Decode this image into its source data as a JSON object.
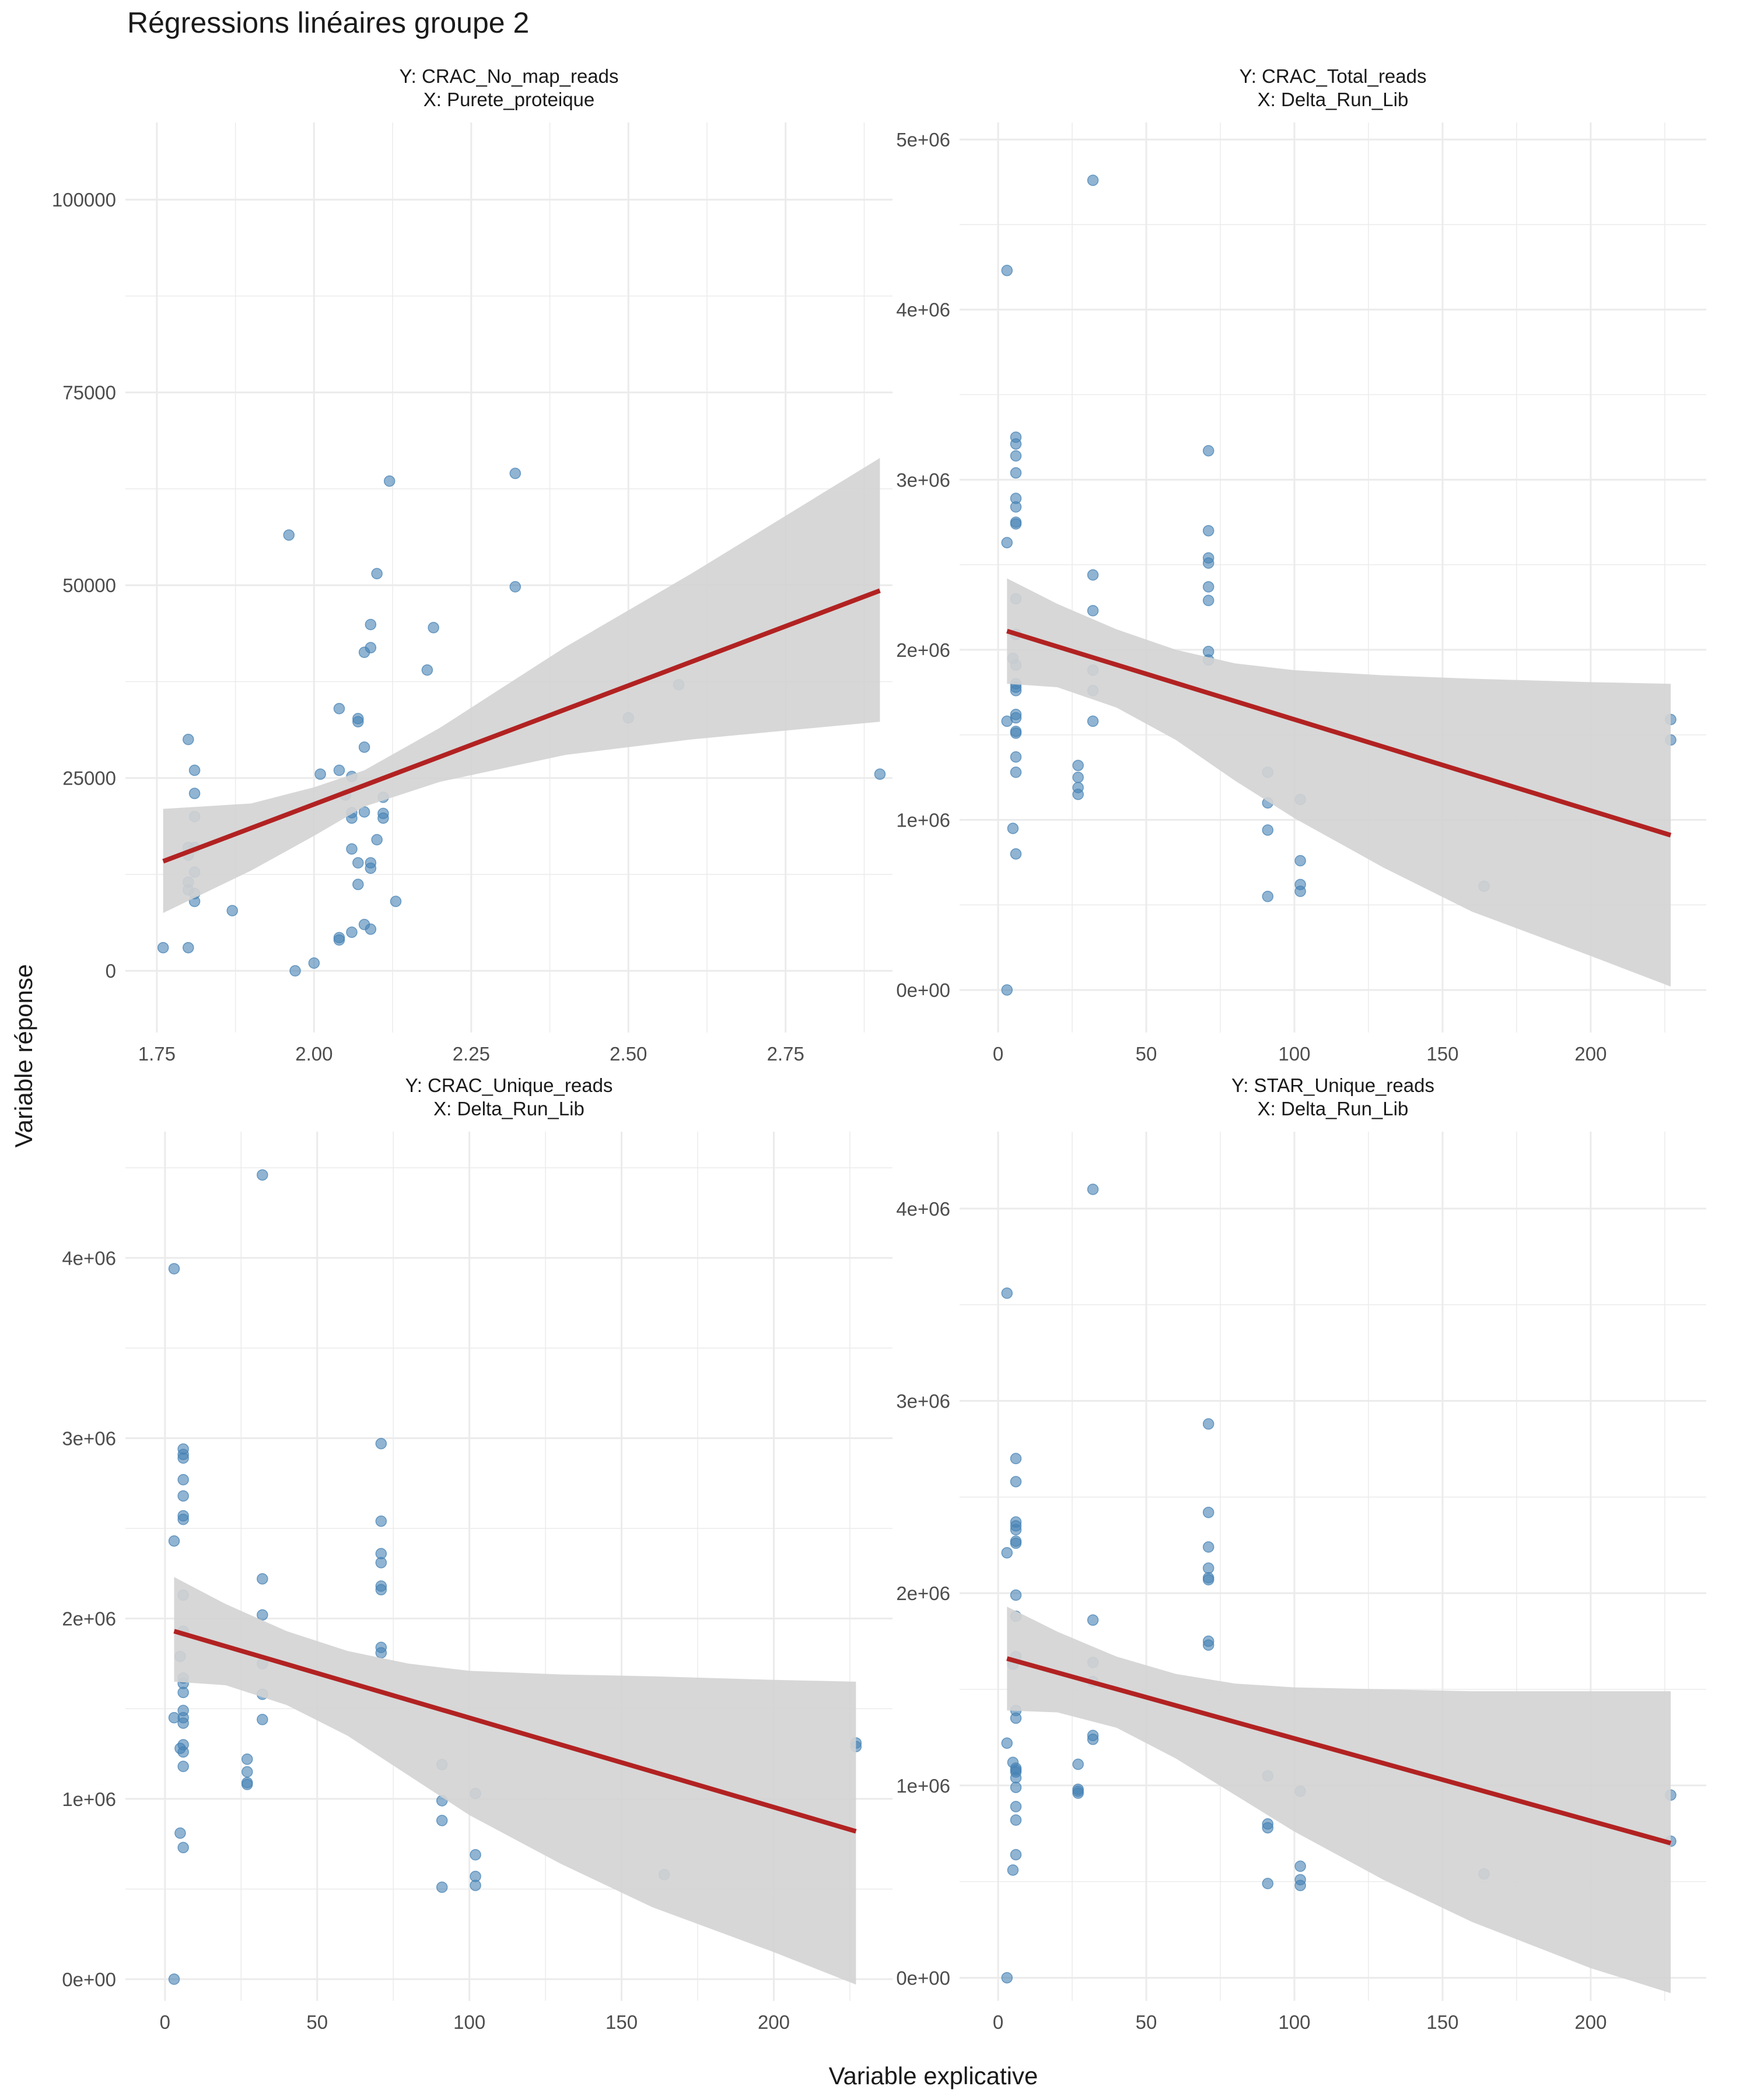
{
  "title": "Régressions linéaires groupe 2",
  "xlabel": "Variable explicative",
  "ylabel": "Variable réponse",
  "colors": {
    "point": "#4682b4",
    "line": "#b22222",
    "ribbon": "#d3d3d3",
    "grid": "#ebebeb"
  },
  "chart_data": [
    {
      "type": "scatter",
      "facet_title_y": "Y: CRAC_No_map_reads",
      "facet_title_x": "X: Purete_proteique",
      "xlim": [
        1.7,
        2.92
      ],
      "ylim": [
        -8000,
        110000
      ],
      "x_ticks": [
        1.75,
        2.0,
        2.25,
        2.5,
        2.75
      ],
      "x_tick_labels": [
        "1.75",
        "2.00",
        "2.25",
        "2.50",
        "2.75"
      ],
      "y_ticks": [
        0,
        25000,
        50000,
        75000,
        100000
      ],
      "y_tick_labels": [
        "0",
        "25000",
        "50000",
        "75000",
        "100000"
      ],
      "points": [
        [
          1.76,
          3000
        ],
        [
          1.8,
          3000
        ],
        [
          1.8,
          30000
        ],
        [
          1.8,
          16000
        ],
        [
          1.8,
          15000
        ],
        [
          1.8,
          11500
        ],
        [
          1.8,
          10500
        ],
        [
          1.81,
          26000
        ],
        [
          1.81,
          23000
        ],
        [
          1.81,
          20000
        ],
        [
          1.81,
          16000
        ],
        [
          1.81,
          12800
        ],
        [
          1.81,
          10000
        ],
        [
          1.81,
          9000
        ],
        [
          1.87,
          7800
        ],
        [
          1.96,
          56500
        ],
        [
          1.97,
          0
        ],
        [
          2.0,
          1000
        ],
        [
          2.01,
          25500
        ],
        [
          2.04,
          34000
        ],
        [
          2.04,
          26000
        ],
        [
          2.04,
          4000
        ],
        [
          2.04,
          4300
        ],
        [
          2.05,
          22800
        ],
        [
          2.06,
          25200
        ],
        [
          2.06,
          20500
        ],
        [
          2.06,
          19800
        ],
        [
          2.06,
          15800
        ],
        [
          2.06,
          5000
        ],
        [
          2.07,
          32700
        ],
        [
          2.07,
          32300
        ],
        [
          2.07,
          14000
        ],
        [
          2.07,
          11200
        ],
        [
          2.08,
          41300
        ],
        [
          2.08,
          29000
        ],
        [
          2.08,
          20600
        ],
        [
          2.08,
          6000
        ],
        [
          2.09,
          44900
        ],
        [
          2.09,
          41900
        ],
        [
          2.09,
          14000
        ],
        [
          2.09,
          13300
        ],
        [
          2.09,
          5400
        ],
        [
          2.1,
          51500
        ],
        [
          2.1,
          17000
        ],
        [
          2.11,
          22500
        ],
        [
          2.11,
          20400
        ],
        [
          2.11,
          19800
        ],
        [
          2.12,
          63500
        ],
        [
          2.13,
          9000
        ],
        [
          2.18,
          39000
        ],
        [
          2.19,
          44500
        ],
        [
          2.32,
          64500
        ],
        [
          2.32,
          49800
        ],
        [
          2.5,
          32800
        ],
        [
          2.58,
          37100
        ],
        [
          2.9,
          25500
        ]
      ],
      "fit": {
        "x": [
          1.76,
          2.9
        ],
        "y": [
          14200,
          49300
        ]
      },
      "band": [
        [
          1.76,
          21000,
          7500
        ],
        [
          1.9,
          21700,
          13000
        ],
        [
          2.0,
          23800,
          17500
        ],
        [
          2.08,
          26000,
          21300
        ],
        [
          2.2,
          31500,
          24500
        ],
        [
          2.4,
          42000,
          28000
        ],
        [
          2.6,
          51500,
          30000
        ],
        [
          2.9,
          66500,
          32300
        ]
      ]
    },
    {
      "type": "scatter",
      "facet_title_y": "Y: CRAC_Total_reads",
      "facet_title_x": "X: Delta_Run_Lib",
      "xlim": [
        -13,
        239
      ],
      "ylim": [
        -250000,
        5100000
      ],
      "x_ticks": [
        0,
        50,
        100,
        150,
        200
      ],
      "x_tick_labels": [
        "0",
        "50",
        "100",
        "150",
        "200"
      ],
      "y_ticks": [
        0,
        1000000,
        2000000,
        3000000,
        4000000,
        5000000
      ],
      "y_tick_labels": [
        "0e+00",
        "1e+06",
        "2e+06",
        "3e+06",
        "4e+06",
        "5e+06"
      ],
      "points": [
        [
          3,
          4230000
        ],
        [
          3,
          2630000
        ],
        [
          3,
          1580000
        ],
        [
          3,
          0
        ],
        [
          5,
          1950000
        ],
        [
          5,
          950000
        ],
        [
          6,
          3250000
        ],
        [
          6,
          3210000
        ],
        [
          6,
          3140000
        ],
        [
          6,
          3040000
        ],
        [
          6,
          2890000
        ],
        [
          6,
          2840000
        ],
        [
          6,
          2750000
        ],
        [
          6,
          2740000
        ],
        [
          6,
          2300000
        ],
        [
          6,
          2090000
        ],
        [
          6,
          1910000
        ],
        [
          6,
          1800000
        ],
        [
          6,
          1780000
        ],
        [
          6,
          1760000
        ],
        [
          6,
          1620000
        ],
        [
          6,
          1600000
        ],
        [
          6,
          1520000
        ],
        [
          6,
          1510000
        ],
        [
          6,
          1370000
        ],
        [
          6,
          1280000
        ],
        [
          6,
          800000
        ],
        [
          27,
          1320000
        ],
        [
          27,
          1250000
        ],
        [
          27,
          1190000
        ],
        [
          27,
          1150000
        ],
        [
          32,
          4760000
        ],
        [
          32,
          2440000
        ],
        [
          32,
          2230000
        ],
        [
          32,
          1880000
        ],
        [
          32,
          1760000
        ],
        [
          32,
          1580000
        ],
        [
          71,
          3170000
        ],
        [
          71,
          2700000
        ],
        [
          71,
          2540000
        ],
        [
          71,
          2510000
        ],
        [
          71,
          2370000
        ],
        [
          71,
          2290000
        ],
        [
          71,
          1990000
        ],
        [
          71,
          1940000
        ],
        [
          91,
          1280000
        ],
        [
          91,
          1100000
        ],
        [
          91,
          940000
        ],
        [
          91,
          550000
        ],
        [
          102,
          1120000
        ],
        [
          102,
          760000
        ],
        [
          102,
          620000
        ],
        [
          102,
          580000
        ],
        [
          164,
          610000
        ],
        [
          227,
          1590000
        ],
        [
          227,
          1470000
        ]
      ],
      "fit": {
        "x": [
          3,
          227
        ],
        "y": [
          2110000,
          910000
        ]
      },
      "band": [
        [
          3,
          2420000,
          1800000
        ],
        [
          20,
          2270000,
          1780000
        ],
        [
          40,
          2120000,
          1660000
        ],
        [
          60,
          2000000,
          1470000
        ],
        [
          80,
          1920000,
          1230000
        ],
        [
          100,
          1880000,
          1010000
        ],
        [
          130,
          1850000,
          720000
        ],
        [
          160,
          1830000,
          460000
        ],
        [
          200,
          1810000,
          200000
        ],
        [
          227,
          1800000,
          20000
        ]
      ]
    },
    {
      "type": "scatter",
      "facet_title_y": "Y: CRAC_Unique_reads",
      "facet_title_x": "X: Delta_Run_Lib",
      "xlim": [
        -13,
        239
      ],
      "ylim": [
        -120000,
        4700000
      ],
      "x_ticks": [
        0,
        50,
        100,
        150,
        200
      ],
      "x_tick_labels": [
        "0",
        "50",
        "100",
        "150",
        "200"
      ],
      "y_ticks": [
        0,
        1000000,
        2000000,
        3000000,
        4000000
      ],
      "y_tick_labels": [
        "0e+00",
        "1e+06",
        "2e+06",
        "3e+06",
        "4e+06"
      ],
      "points": [
        [
          3,
          3940000
        ],
        [
          3,
          2430000
        ],
        [
          3,
          1450000
        ],
        [
          3,
          0
        ],
        [
          5,
          1790000
        ],
        [
          5,
          810000
        ],
        [
          5,
          1280000
        ],
        [
          6,
          2940000
        ],
        [
          6,
          2910000
        ],
        [
          6,
          2890000
        ],
        [
          6,
          2770000
        ],
        [
          6,
          2680000
        ],
        [
          6,
          2570000
        ],
        [
          6,
          2550000
        ],
        [
          6,
          2130000
        ],
        [
          6,
          1930000
        ],
        [
          6,
          1670000
        ],
        [
          6,
          1640000
        ],
        [
          6,
          1590000
        ],
        [
          6,
          1490000
        ],
        [
          6,
          1450000
        ],
        [
          6,
          1420000
        ],
        [
          6,
          1300000
        ],
        [
          6,
          1260000
        ],
        [
          6,
          1180000
        ],
        [
          6,
          730000
        ],
        [
          27,
          1220000
        ],
        [
          27,
          1150000
        ],
        [
          27,
          1090000
        ],
        [
          27,
          1080000
        ],
        [
          32,
          4460000
        ],
        [
          32,
          2220000
        ],
        [
          32,
          2020000
        ],
        [
          32,
          1750000
        ],
        [
          32,
          1580000
        ],
        [
          32,
          1440000
        ],
        [
          71,
          2970000
        ],
        [
          71,
          2540000
        ],
        [
          71,
          2360000
        ],
        [
          71,
          2310000
        ],
        [
          71,
          2180000
        ],
        [
          71,
          2160000
        ],
        [
          71,
          1840000
        ],
        [
          71,
          1810000
        ],
        [
          91,
          1190000
        ],
        [
          91,
          990000
        ],
        [
          91,
          880000
        ],
        [
          91,
          510000
        ],
        [
          102,
          1030000
        ],
        [
          102,
          690000
        ],
        [
          102,
          570000
        ],
        [
          102,
          520000
        ],
        [
          164,
          580000
        ],
        [
          227,
          1310000
        ],
        [
          227,
          1290000
        ]
      ],
      "fit": {
        "x": [
          3,
          227
        ],
        "y": [
          1930000,
          820000
        ]
      },
      "band": [
        [
          3,
          2230000,
          1650000
        ],
        [
          20,
          2080000,
          1630000
        ],
        [
          40,
          1930000,
          1520000
        ],
        [
          60,
          1820000,
          1350000
        ],
        [
          80,
          1750000,
          1130000
        ],
        [
          100,
          1710000,
          910000
        ],
        [
          130,
          1690000,
          640000
        ],
        [
          160,
          1680000,
          400000
        ],
        [
          200,
          1660000,
          150000
        ],
        [
          227,
          1650000,
          -30000
        ]
      ]
    },
    {
      "type": "scatter",
      "facet_title_y": "Y: STAR_Unique_reads",
      "facet_title_x": "X: Delta_Run_Lib",
      "xlim": [
        -13,
        239
      ],
      "ylim": [
        -120000,
        4400000
      ],
      "x_ticks": [
        0,
        50,
        100,
        150,
        200
      ],
      "x_tick_labels": [
        "0",
        "50",
        "100",
        "150",
        "200"
      ],
      "y_ticks": [
        0,
        1000000,
        2000000,
        3000000,
        4000000
      ],
      "y_tick_labels": [
        "0e+00",
        "1e+06",
        "2e+06",
        "3e+06",
        "4e+06"
      ],
      "points": [
        [
          3,
          3560000
        ],
        [
          3,
          2210000
        ],
        [
          3,
          1220000
        ],
        [
          3,
          0
        ],
        [
          5,
          1630000
        ],
        [
          5,
          560000
        ],
        [
          5,
          1120000
        ],
        [
          6,
          2700000
        ],
        [
          6,
          2580000
        ],
        [
          6,
          2370000
        ],
        [
          6,
          2350000
        ],
        [
          6,
          2330000
        ],
        [
          6,
          2260000
        ],
        [
          6,
          2270000
        ],
        [
          6,
          1990000
        ],
        [
          6,
          1880000
        ],
        [
          6,
          1670000
        ],
        [
          6,
          1390000
        ],
        [
          6,
          1350000
        ],
        [
          6,
          1090000
        ],
        [
          6,
          1080000
        ],
        [
          6,
          1070000
        ],
        [
          6,
          1040000
        ],
        [
          6,
          990000
        ],
        [
          6,
          890000
        ],
        [
          6,
          820000
        ],
        [
          6,
          640000
        ],
        [
          27,
          1110000
        ],
        [
          27,
          980000
        ],
        [
          27,
          960000
        ],
        [
          27,
          970000
        ],
        [
          32,
          4100000
        ],
        [
          32,
          1860000
        ],
        [
          32,
          1640000
        ],
        [
          32,
          1540000
        ],
        [
          32,
          1260000
        ],
        [
          32,
          1240000
        ],
        [
          71,
          2880000
        ],
        [
          71,
          2420000
        ],
        [
          71,
          2240000
        ],
        [
          71,
          2130000
        ],
        [
          71,
          2080000
        ],
        [
          71,
          2070000
        ],
        [
          71,
          1750000
        ],
        [
          71,
          1730000
        ],
        [
          91,
          1050000
        ],
        [
          91,
          800000
        ],
        [
          91,
          780000
        ],
        [
          91,
          490000
        ],
        [
          102,
          970000
        ],
        [
          102,
          580000
        ],
        [
          102,
          510000
        ],
        [
          102,
          480000
        ],
        [
          164,
          540000
        ],
        [
          227,
          950000
        ],
        [
          227,
          710000
        ]
      ],
      "fit": {
        "x": [
          3,
          227
        ],
        "y": [
          1660000,
          700000
        ]
      },
      "band": [
        [
          3,
          1930000,
          1390000
        ],
        [
          20,
          1800000,
          1380000
        ],
        [
          40,
          1670000,
          1300000
        ],
        [
          60,
          1580000,
          1140000
        ],
        [
          80,
          1530000,
          950000
        ],
        [
          100,
          1510000,
          760000
        ],
        [
          130,
          1500000,
          510000
        ],
        [
          160,
          1490000,
          290000
        ],
        [
          200,
          1490000,
          50000
        ],
        [
          227,
          1490000,
          -80000
        ]
      ]
    }
  ]
}
